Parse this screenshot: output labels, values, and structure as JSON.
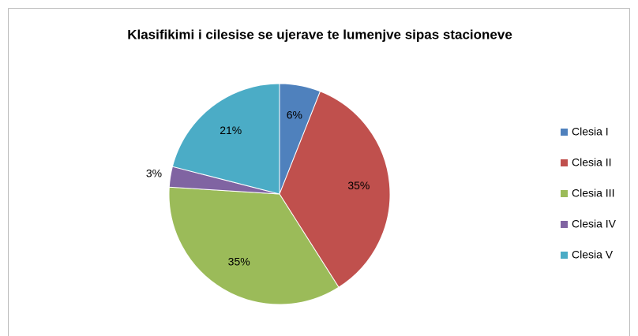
{
  "chart_data": {
    "type": "pie",
    "title": "Klasifikimi i cilesise se ujerave te lumenjve sipas stacioneve",
    "categories": [
      "Clesia I",
      "Clesia II",
      "Clesia III",
      "Clesia IV",
      "Clesia V"
    ],
    "values": [
      6,
      35,
      35,
      3,
      21
    ],
    "value_labels": [
      "6%",
      "35%",
      "35%",
      "3%",
      "21%"
    ],
    "colors": [
      "#4f81bd",
      "#c0504d",
      "#9bbb59",
      "#8064a2",
      "#4bacc6"
    ],
    "legend": "right"
  }
}
